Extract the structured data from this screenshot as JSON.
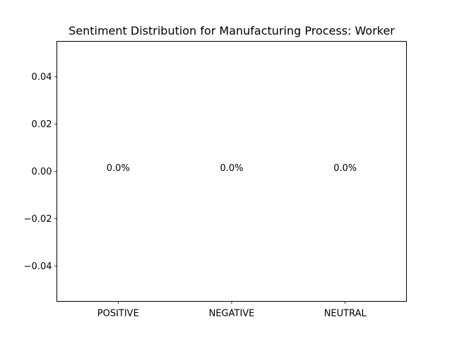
{
  "chart_data": {
    "type": "bar",
    "title": "Sentiment Distribution for Manufacturing Process: Worker",
    "categories": [
      "POSITIVE",
      "NEGATIVE",
      "NEUTRAL"
    ],
    "values": [
      0,
      0,
      0
    ],
    "data_labels": [
      "0.0%",
      "0.0%",
      "0.0%"
    ],
    "xlabel": "",
    "ylabel": "",
    "ylim": [
      -0.055,
      0.055
    ],
    "yticks": [
      {
        "value": 0.04,
        "label": "0.04"
      },
      {
        "value": 0.02,
        "label": "0.02"
      },
      {
        "value": 0.0,
        "label": "0.00"
      },
      {
        "value": -0.02,
        "label": "−0.02"
      },
      {
        "value": -0.04,
        "label": "−0.04"
      }
    ],
    "grid": false,
    "legend": "none"
  }
}
